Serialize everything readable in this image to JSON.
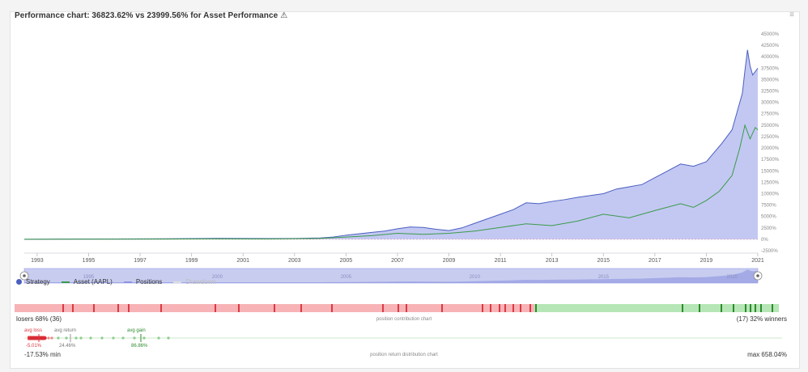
{
  "header": {
    "title": "Performance chart: 36823.62% vs 23999.56% for Asset Performance",
    "warn_glyph": "⚠"
  },
  "chart_data": {
    "type": "area",
    "title": "Performance chart: 36823.62% vs 23999.56% for Asset Performance",
    "xlabel": "",
    "ylabel": "",
    "x_range": [
      1992.5,
      2021.0
    ],
    "ylim": [
      -2500,
      45000
    ],
    "y_ticks": [
      "-2500%",
      "0%",
      "2500%",
      "5000%",
      "7500%",
      "10000%",
      "12500%",
      "15000%",
      "17500%",
      "20000%",
      "22500%",
      "25000%",
      "27500%",
      "30000%",
      "32500%",
      "35000%",
      "37500%",
      "40000%",
      "42500%",
      "45000%"
    ],
    "x_ticks": [
      "1993",
      "1995",
      "1997",
      "1999",
      "2001",
      "2003",
      "2005",
      "2007",
      "2009",
      "2011",
      "2013",
      "2015",
      "2017",
      "2019",
      "2021"
    ],
    "navigator_ticks": [
      "1995",
      "2000",
      "2005",
      "2010",
      "2015",
      "2020"
    ],
    "series": [
      {
        "name": "Strategy",
        "color": "#4a5fc1",
        "x": [
          1992.5,
          1994,
          1996,
          1998,
          2000,
          2002,
          2003,
          2004,
          2004.5,
          2005,
          2005.5,
          2006,
          2006.5,
          2007,
          2007.5,
          2008,
          2008.5,
          2009,
          2009.5,
          2010,
          2010.5,
          2011,
          2011.5,
          2012,
          2012.5,
          2013,
          2013.5,
          2014,
          2014.5,
          2015,
          2015.5,
          2016,
          2016.5,
          2017,
          2017.5,
          2018,
          2018.5,
          2019,
          2019.3,
          2019.6,
          2020,
          2020.2,
          2020.4,
          2020.5,
          2020.6,
          2020.7,
          2020.8,
          2021
        ],
        "y": [
          0,
          50,
          80,
          120,
          200,
          150,
          180,
          300,
          500,
          900,
          1200,
          1500,
          1800,
          2300,
          2700,
          2600,
          2200,
          1900,
          2500,
          3500,
          4500,
          5500,
          6500,
          8000,
          7800,
          8300,
          8700,
          9200,
          9600,
          10000,
          11000,
          11500,
          12000,
          13500,
          15000,
          16500,
          16000,
          17000,
          19000,
          21000,
          24000,
          28000,
          32000,
          37000,
          41500,
          38000,
          36000,
          37500
        ]
      },
      {
        "name": "Asset (AAPL)",
        "color": "#3a9a4a",
        "x": [
          1992.5,
          1994,
          1996,
          1998,
          2000,
          2002,
          2004,
          2005,
          2006,
          2007,
          2008,
          2009,
          2010,
          2011,
          2012,
          2013,
          2014,
          2015,
          2016,
          2017,
          2018,
          2018.5,
          2019,
          2019.5,
          2020,
          2020.3,
          2020.5,
          2020.7,
          2020.9,
          2021
        ],
        "y": [
          0,
          20,
          30,
          50,
          100,
          60,
          200,
          500,
          800,
          1300,
          1100,
          1300,
          1800,
          2600,
          3400,
          3000,
          4000,
          5500,
          4700,
          6300,
          7800,
          7000,
          8500,
          10500,
          14000,
          20000,
          25000,
          22000,
          24500,
          24000
        ]
      },
      {
        "name": "Positions",
        "color": "#9aa0e8",
        "fill": "#b9bef0"
      },
      {
        "name": "Drawdown",
        "color": "#dddddd"
      }
    ]
  },
  "legend": [
    {
      "name": "Strategy",
      "style": "dot",
      "color": "#4a5fc1",
      "enabled": true
    },
    {
      "name": "Asset (AAPL)",
      "style": "line",
      "color": "#3a9a4a",
      "enabled": true
    },
    {
      "name": "Positions",
      "style": "line",
      "color": "#8c93e0",
      "enabled": true
    },
    {
      "name": "Drawdown",
      "style": "line",
      "color": "#cccccc",
      "enabled": false
    }
  ],
  "contribution": {
    "losers_label": "losers 68% (36)",
    "winners_label": "(17) 32% winners",
    "center_label": "position contribution chart",
    "loss_fraction": 0.68,
    "loss_color": "#f7b3b6",
    "win_color": "#b6e6b6",
    "loss_mark_color": "#d93a44",
    "win_mark_color": "#2e8b2e",
    "loss_marks": [
      0.062,
      0.075,
      0.103,
      0.135,
      0.148,
      0.191,
      0.262,
      0.292,
      0.339,
      0.374,
      0.414,
      0.481,
      0.501,
      0.512,
      0.558,
      0.611,
      0.622,
      0.634,
      0.641,
      0.652,
      0.661,
      0.674
    ],
    "win_marks": [
      0.681,
      0.873,
      0.895,
      0.924,
      0.94,
      0.955,
      0.962,
      0.968,
      0.976,
      0.99
    ]
  },
  "distribution": {
    "avg_loss_label": "avg loss",
    "avg_loss_value": "-5.01%",
    "avg_return_label": "avg return",
    "avg_return_value": "24.46%",
    "avg_gain_label": "avg gain",
    "avg_gain_value": "86.86%",
    "min_label": "-17.53% min",
    "max_label": "max 658.04%",
    "center_label": "position return distribution chart"
  }
}
